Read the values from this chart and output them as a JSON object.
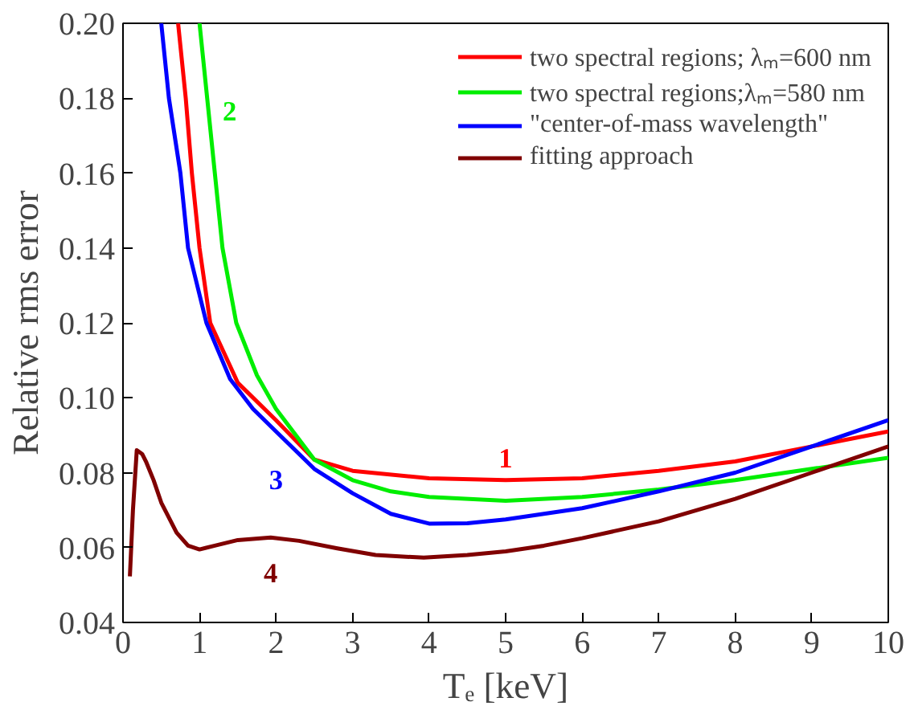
{
  "chart_data": {
    "type": "line",
    "xlabel": "Tₑ [keV]",
    "ylabel": "Relative rms error",
    "xlim": [
      0,
      10
    ],
    "ylim": [
      0.04,
      0.2
    ],
    "xticks": [
      0,
      1,
      2,
      3,
      4,
      5,
      6,
      7,
      8,
      9,
      10
    ],
    "yticks": [
      0.04,
      0.06,
      0.08,
      {
        "value": 0.1,
        "label": "0.10"
      },
      0.12,
      0.14,
      0.16,
      0.18,
      {
        "value": 0.2,
        "label": "0.20"
      }
    ],
    "grid": false,
    "legend": "top right",
    "line_style": "solid",
    "marker": "none",
    "series": [
      {
        "name": "two spectral regions; λₘ=600 nm",
        "color": "#ff0000",
        "x": [
          0.72,
          0.82,
          0.9,
          1,
          1.14,
          1.5,
          2,
          2.5,
          3,
          4,
          5,
          6,
          7,
          8,
          9,
          10
        ],
        "values": [
          0.2,
          0.18,
          0.16,
          0.14,
          0.12,
          0.104,
          0.094,
          0.0835,
          0.0805,
          0.0785,
          0.078,
          0.0785,
          0.0805,
          0.083,
          0.087,
          0.091
        ]
      },
      {
        "name": "two spectral regions;λₘ=580 nm",
        "color": "#00ee00",
        "x": [
          1,
          1.1,
          1.2,
          1.3,
          1.48,
          1.75,
          2,
          2.5,
          3,
          3.5,
          4,
          5,
          6,
          7,
          8,
          9,
          10
        ],
        "values": [
          0.2,
          0.18,
          0.16,
          0.14,
          0.12,
          0.106,
          0.097,
          0.0835,
          0.078,
          0.075,
          0.0735,
          0.0725,
          0.0735,
          0.0755,
          0.078,
          0.081,
          0.084
        ]
      },
      {
        "name": "\"center-of-mass wavelength\"",
        "color": "#0000ff",
        "x": [
          0.5,
          0.6,
          0.75,
          0.85,
          1.09,
          1.4,
          1.7,
          2,
          2.5,
          3,
          3.5,
          4,
          4.5,
          5,
          6,
          7,
          8,
          9,
          10
        ],
        "values": [
          0.2,
          0.18,
          0.16,
          0.14,
          0.12,
          0.105,
          0.097,
          0.091,
          0.081,
          0.0745,
          0.069,
          0.0664,
          0.0665,
          0.0675,
          0.0705,
          0.075,
          0.08,
          0.087,
          0.094
        ]
      },
      {
        "name": "fitting approach",
        "color": "#800000",
        "x": [
          0.09,
          0.13,
          0.18,
          0.25,
          0.3,
          0.4,
          0.5,
          0.7,
          0.85,
          1,
          1.2,
          1.5,
          1.93,
          2.3,
          2.8,
          3.3,
          3.93,
          4.5,
          5,
          5.5,
          6,
          7,
          8,
          9,
          10
        ],
        "values": [
          0.0523,
          0.07,
          0.086,
          0.085,
          0.083,
          0.078,
          0.072,
          0.064,
          0.0605,
          0.0595,
          0.0605,
          0.062,
          0.0627,
          0.0618,
          0.0598,
          0.058,
          0.0573,
          0.058,
          0.059,
          0.0605,
          0.0625,
          0.067,
          0.073,
          0.08,
          0.087
        ]
      }
    ],
    "annotations": [
      "1",
      "2",
      "3",
      "4"
    ]
  }
}
